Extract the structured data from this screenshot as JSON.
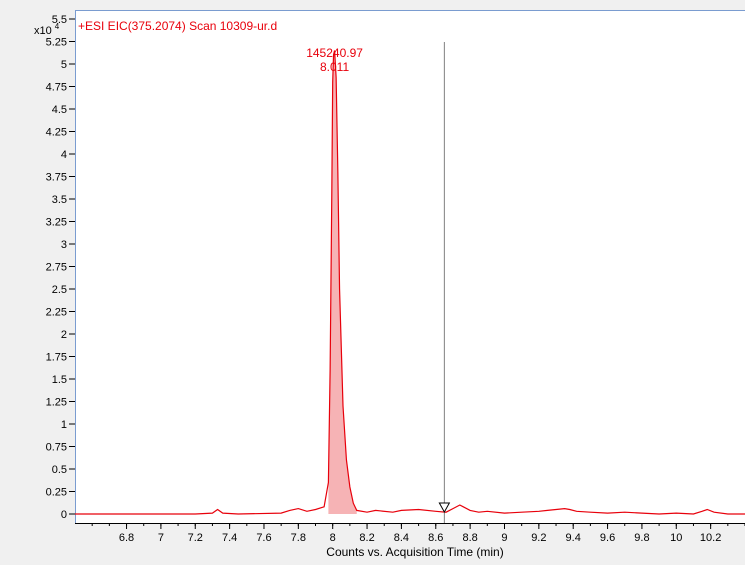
{
  "chart_data": {
    "type": "line",
    "title": "+ESI EIC(375.2074) Scan 10309-ur.d",
    "xlabel": "Counts vs. Acquisition Time (min)",
    "ylabel": "",
    "y_multiplier_label": "x10",
    "y_multiplier_exponent": "4",
    "xlim": [
      6.5,
      10.4
    ],
    "ylim": [
      -0.1,
      5.6
    ],
    "x_ticks": [
      6.8,
      7,
      7.2,
      7.4,
      7.6,
      7.8,
      8,
      8.2,
      8.4,
      8.6,
      8.8,
      9,
      9.2,
      9.4,
      9.6,
      9.8,
      10,
      10.2
    ],
    "x_tick_labels": [
      "6.8",
      "7",
      "7.2",
      "7.4",
      "7.6",
      "7.8",
      "8",
      "8.2",
      "8.4",
      "8.6",
      "8.8",
      "9",
      "9.2",
      "9.4",
      "9.6",
      "9.8",
      "10",
      "10.2"
    ],
    "y_ticks": [
      0,
      0.25,
      0.5,
      0.75,
      1,
      1.25,
      1.5,
      1.75,
      2,
      2.25,
      2.5,
      2.75,
      3,
      3.25,
      3.5,
      3.75,
      4,
      4.25,
      4.5,
      4.75,
      5,
      5.25,
      5.5
    ],
    "y_tick_labels": [
      "0",
      "0.25",
      "0.5",
      "0.75",
      "1",
      "1.25",
      "1.5",
      "1.75",
      "2",
      "2.25",
      "2.5",
      "2.75",
      "3",
      "3.25",
      "3.5",
      "3.75",
      "4",
      "4.25",
      "4.5",
      "4.75",
      "5",
      "5.25",
      "5.5"
    ],
    "grid": false,
    "series": [
      {
        "color": "#e8000b",
        "fill": "#f6b3b5",
        "x": [
          6.5,
          7.2,
          7.3,
          7.33,
          7.36,
          7.45,
          7.7,
          7.75,
          7.8,
          7.85,
          7.9,
          7.95,
          7.975,
          7.985,
          7.995,
          8.0,
          8.005,
          8.011,
          8.02,
          8.03,
          8.04,
          8.06,
          8.08,
          8.1,
          8.12,
          8.14,
          8.2,
          8.25,
          8.35,
          8.4,
          8.5,
          8.6,
          8.66,
          8.7,
          8.74,
          8.76,
          8.8,
          8.85,
          8.9,
          9.0,
          9.1,
          9.2,
          9.25,
          9.3,
          9.35,
          9.38,
          9.42,
          9.5,
          9.6,
          9.7,
          9.8,
          9.9,
          10.0,
          10.1,
          10.15,
          10.18,
          10.22,
          10.3,
          10.4
        ],
        "y": [
          0.0,
          0.0,
          0.01,
          0.05,
          0.01,
          0.0,
          0.01,
          0.04,
          0.06,
          0.03,
          0.05,
          0.08,
          0.35,
          1.6,
          3.6,
          4.8,
          5.1,
          5.15,
          4.85,
          3.8,
          2.5,
          1.2,
          0.6,
          0.3,
          0.12,
          0.04,
          0.02,
          0.04,
          0.02,
          0.04,
          0.05,
          0.03,
          0.02,
          0.06,
          0.1,
          0.08,
          0.04,
          0.02,
          0.03,
          0.01,
          0.02,
          0.03,
          0.04,
          0.05,
          0.06,
          0.05,
          0.03,
          0.02,
          0.01,
          0.02,
          0.01,
          0.0,
          0.01,
          0.0,
          0.03,
          0.05,
          0.02,
          0.0,
          0.0
        ]
      }
    ],
    "annotations": [
      {
        "x": 8.011,
        "y": 5.15,
        "line1": "145240.97",
        "line2": "8.011"
      }
    ],
    "cursor": {
      "x": 8.65
    }
  }
}
